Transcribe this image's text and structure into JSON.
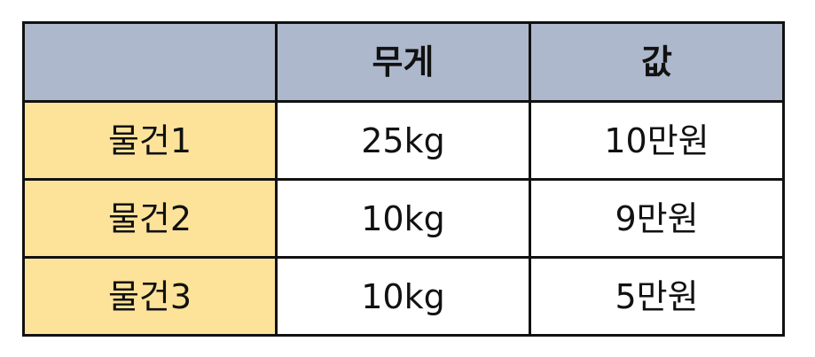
{
  "colors": {
    "header_bg": "#aeb8cc",
    "row_label_bg": "#fde39a",
    "cell_bg": "#ffffff",
    "border": "#111111"
  },
  "table": {
    "headers": [
      "",
      "무게",
      "값"
    ],
    "rows": [
      {
        "item": "물건1",
        "weight": "25kg",
        "price": "10만원"
      },
      {
        "item": "물건2",
        "weight": "10kg",
        "price": "9만원"
      },
      {
        "item": "물건3",
        "weight": "10kg",
        "price": "5만원"
      }
    ]
  }
}
